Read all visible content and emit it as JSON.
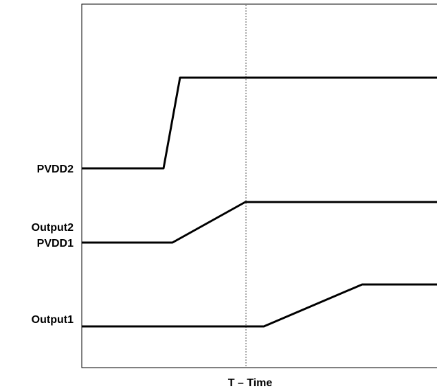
{
  "colors": {
    "background": "#ffffff",
    "trace": "#000000",
    "frame": "#000000",
    "marker": "#555555"
  },
  "signal_labels": {
    "pvdd2": "PVDD2",
    "output2": "Output2",
    "pvdd1": "PVDD1",
    "output1": "Output1"
  },
  "axis": {
    "xlabel": "T – Time"
  }
}
